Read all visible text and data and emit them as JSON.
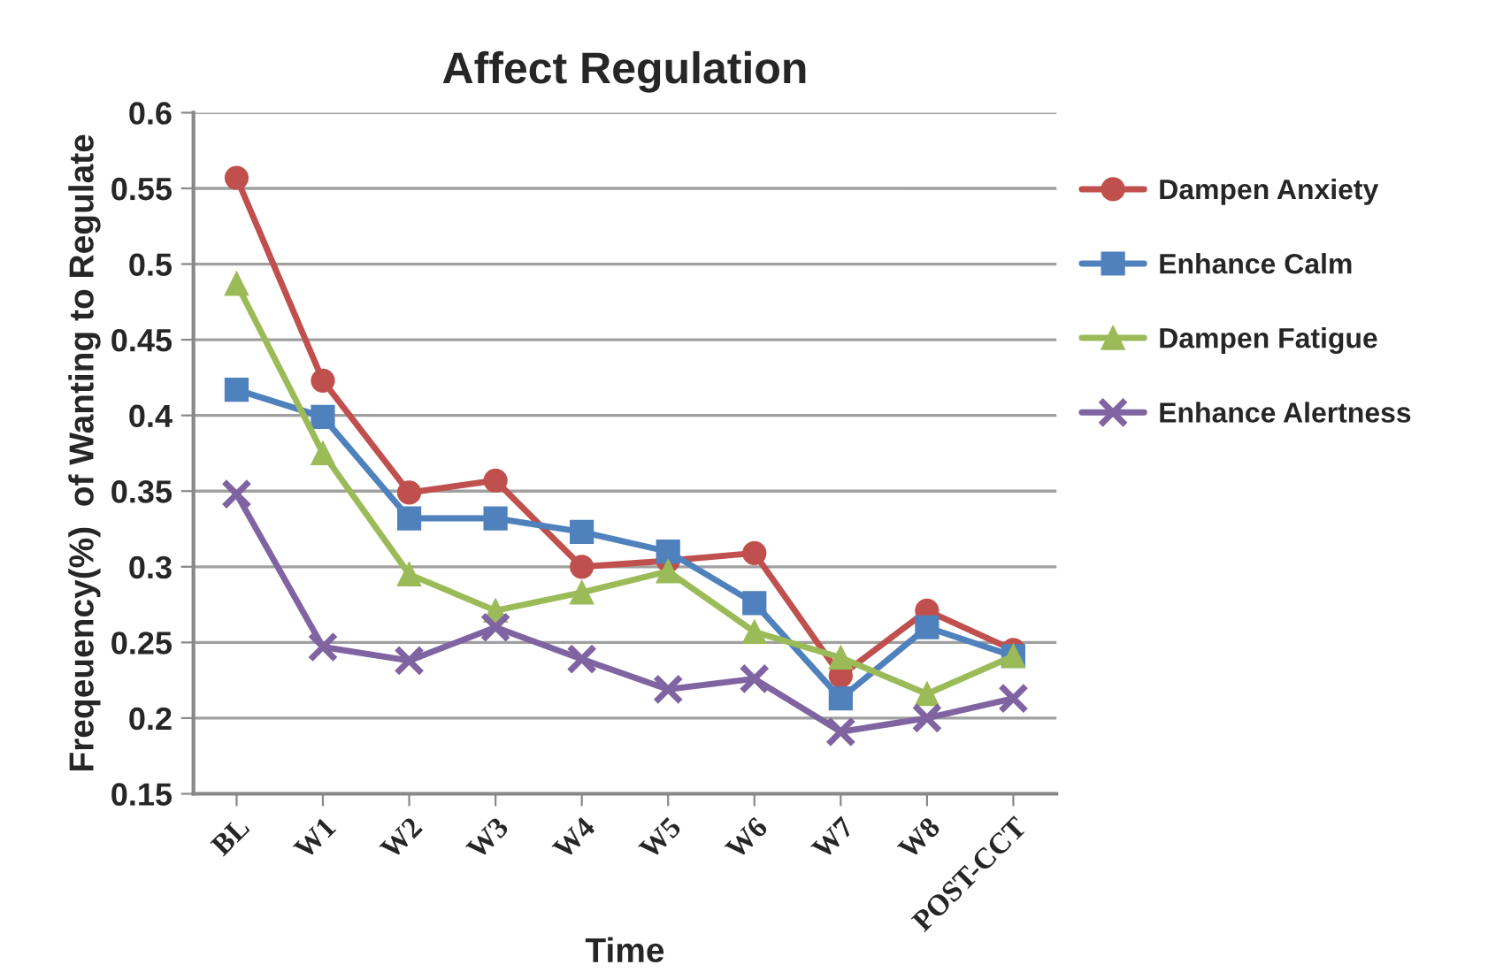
{
  "chart_data": {
    "type": "line",
    "title": "Affect Regulation",
    "xlabel": "Time",
    "ylabel": "Freqeuency(%)  of Wanting to Regulate",
    "categories": [
      "BL",
      "W1",
      "W2",
      "W3",
      "W4",
      "W5",
      "W6",
      "W7",
      "W8",
      "POST-CCT"
    ],
    "series": [
      {
        "name": "Dampen Anxiety",
        "color": "#c0504d",
        "marker": "circle",
        "values": [
          0.557,
          0.423,
          0.349,
          0.357,
          0.3,
          0.304,
          0.309,
          0.228,
          0.271,
          0.245
        ]
      },
      {
        "name": "Enhance Calm",
        "color": "#4f81bd",
        "marker": "square",
        "values": [
          0.417,
          0.399,
          0.332,
          0.332,
          0.323,
          0.31,
          0.276,
          0.213,
          0.26,
          0.241
        ]
      },
      {
        "name": "Dampen Fatigue",
        "color": "#9bbb59",
        "marker": "triangle",
        "values": [
          0.487,
          0.375,
          0.295,
          0.271,
          0.283,
          0.297,
          0.257,
          0.24,
          0.216,
          0.241
        ]
      },
      {
        "name": "Enhance Alertness",
        "color": "#8064a2",
        "marker": "cross",
        "values": [
          0.348,
          0.247,
          0.238,
          0.26,
          0.239,
          0.219,
          0.226,
          0.191,
          0.2,
          0.213
        ]
      }
    ],
    "ylim": [
      0.15,
      0.6
    ],
    "yticks": [
      0.15,
      0.2,
      0.25,
      0.3,
      0.35,
      0.4,
      0.45,
      0.5,
      0.55,
      0.6
    ],
    "grid": "y",
    "legend": "right",
    "line_style": "solid"
  }
}
